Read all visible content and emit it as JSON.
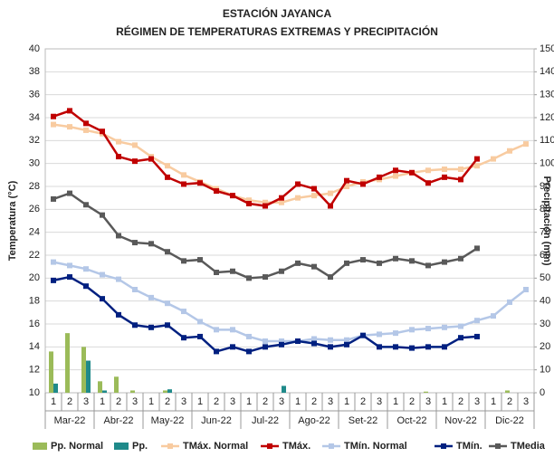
{
  "chart_data": {
    "type": "combo",
    "title": [
      "ESTACIÓN JAYANCA",
      "RÉGIMEN DE TEMPERATURAS EXTREMAS Y PRECIPITACIÓN"
    ],
    "y_label": "Temperatura (°C)",
    "y2_label": "Precipitación (mm)",
    "categories": [
      "1",
      "2",
      "3",
      "1",
      "2",
      "3",
      "1",
      "2",
      "3",
      "1",
      "2",
      "3",
      "1",
      "2",
      "3",
      "1",
      "2",
      "3",
      "1",
      "2",
      "3",
      "1",
      "2",
      "3",
      "1",
      "2",
      "3",
      "1",
      "2",
      "3"
    ],
    "groups": [
      "Mar-22",
      "Abr-22",
      "May-22",
      "Jun-22",
      "Jul-22",
      "Ago-22",
      "Set-22",
      "Oct-22",
      "Nov-22",
      "Dic-22"
    ],
    "ylim": [
      10,
      40
    ],
    "yticks": [
      10,
      12,
      14,
      16,
      18,
      20,
      22,
      24,
      26,
      28,
      30,
      32,
      34,
      36,
      38,
      40
    ],
    "y2lim": [
      0,
      150
    ],
    "y2ticks": [
      0,
      10,
      20,
      30,
      40,
      50,
      60,
      70,
      80,
      90,
      100,
      110,
      120,
      130,
      140,
      150
    ],
    "grid": true,
    "legend": "bottom",
    "series": [
      {
        "name": "Pp. Normal",
        "kind": "bar",
        "axis": "y2",
        "color": "#9bbb59",
        "values": [
          18,
          26,
          20,
          5,
          7,
          1,
          0,
          1,
          0,
          0,
          0,
          0,
          0,
          0,
          0,
          0,
          0,
          0,
          0,
          0,
          0,
          0,
          0,
          0.5,
          0,
          0,
          0,
          0,
          1,
          0
        ]
      },
      {
        "name": "Pp.",
        "kind": "bar",
        "axis": "y2",
        "color": "#1f8a8a",
        "values": [
          4,
          0,
          14,
          1,
          0,
          0,
          0,
          1.5,
          0,
          0,
          0,
          0,
          0,
          0,
          3,
          0,
          0,
          0,
          0,
          0,
          0,
          0,
          0,
          0,
          0,
          0,
          0,
          null,
          null,
          null
        ]
      },
      {
        "name": "TMáx. Normal",
        "kind": "line",
        "color": "#f8cba0",
        "values": [
          33.4,
          33.2,
          32.9,
          32.6,
          31.9,
          31.6,
          30.6,
          29.8,
          29.0,
          28.4,
          27.8,
          27.2,
          26.8,
          26.6,
          26.6,
          27.0,
          27.2,
          27.4,
          28.0,
          28.4,
          28.6,
          28.9,
          29.2,
          29.4,
          29.5,
          29.5,
          29.8,
          30.4,
          31.1,
          31.7
        ]
      },
      {
        "name": "TMáx.",
        "kind": "line",
        "color": "#c00000",
        "values": [
          34.1,
          34.6,
          33.5,
          32.8,
          30.6,
          30.2,
          30.4,
          28.8,
          28.2,
          28.3,
          27.6,
          27.2,
          26.5,
          26.3,
          27.0,
          28.2,
          27.8,
          26.3,
          28.5,
          28.2,
          28.8,
          29.4,
          29.2,
          28.3,
          28.8,
          28.6,
          30.4,
          null,
          null,
          null
        ]
      },
      {
        "name": "TMín. Normal",
        "kind": "line",
        "color": "#b4c7e7",
        "values": [
          21.4,
          21.1,
          20.8,
          20.3,
          19.9,
          19.0,
          18.3,
          17.8,
          17.1,
          16.2,
          15.5,
          15.5,
          14.9,
          14.5,
          14.5,
          14.5,
          14.7,
          14.6,
          14.6,
          15.0,
          15.1,
          15.2,
          15.5,
          15.6,
          15.7,
          15.8,
          16.3,
          16.7,
          17.9,
          19.0
        ]
      },
      {
        "name": "TMín.",
        "kind": "line",
        "color": "#002080",
        "values": [
          19.8,
          20.1,
          19.3,
          18.2,
          16.8,
          15.9,
          15.7,
          15.9,
          14.8,
          14.9,
          13.6,
          14.0,
          13.6,
          14.0,
          14.2,
          14.5,
          14.3,
          14.0,
          14.2,
          15.0,
          14.0,
          14.0,
          13.9,
          14.0,
          14.0,
          14.8,
          14.9,
          null,
          null,
          null
        ]
      },
      {
        "name": "TMedia",
        "kind": "line",
        "color": "#595959",
        "values": [
          26.9,
          27.4,
          26.4,
          25.5,
          23.7,
          23.1,
          23.0,
          22.3,
          21.5,
          21.6,
          20.5,
          20.6,
          20.0,
          20.1,
          20.6,
          21.3,
          21.0,
          20.1,
          21.3,
          21.6,
          21.3,
          21.7,
          21.5,
          21.1,
          21.4,
          21.7,
          22.6,
          null,
          null,
          null
        ]
      }
    ]
  }
}
